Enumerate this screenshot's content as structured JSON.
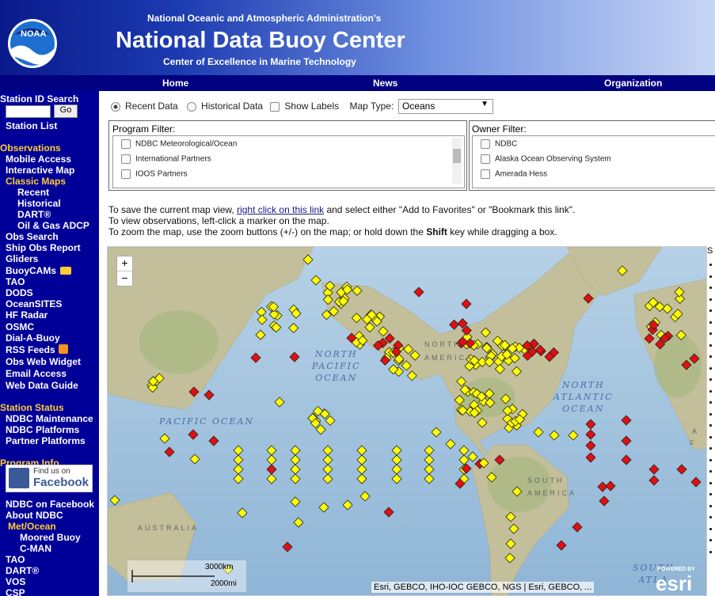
{
  "header": {
    "logo": "NOAA",
    "org": "National Oceanic and Atmospheric Administration's",
    "title": "National Data Buoy Center",
    "subtitle": "Center of Excellence in Marine Technology"
  },
  "nav": [
    "Home",
    "News",
    "Organization"
  ],
  "sidebar": {
    "search": {
      "label": "Station ID Search",
      "button": "Go",
      "link": "Station List"
    },
    "observations": {
      "heading": "Observations",
      "links": [
        "Mobile Access",
        "Interactive Map"
      ],
      "classic": "Classic Maps",
      "classic_links": [
        "Recent",
        "Historical",
        "DART®",
        "Oil & Gas ADCP"
      ],
      "more_links": [
        "Obs Search",
        "Ship Obs Report",
        "Gliders",
        "BuoyCAMs",
        "TAO",
        "DODS",
        "OceanSITES",
        "HF Radar",
        "OSMC",
        "Dial-A-Buoy",
        "RSS Feeds",
        "Obs Web Widget",
        "Email Access",
        "Web Data Guide"
      ]
    },
    "status": {
      "heading": "Station Status",
      "links": [
        "NDBC Maintenance",
        "NDBC Platforms",
        "Partner Platforms"
      ]
    },
    "program": {
      "heading": "Program Info",
      "facebook": [
        "Find us on",
        "Facebook"
      ],
      "links": [
        "NDBC on Facebook",
        "About NDBC"
      ],
      "metocean": "Met/Ocean",
      "metocean_links": [
        "Moored Buoy",
        "C-MAN"
      ],
      "more_links": [
        "TAO",
        "DART®",
        "VOS",
        "CSP"
      ]
    }
  },
  "controls": {
    "recent": "Recent Data",
    "historical": "Historical Data",
    "labels": "Show Labels",
    "map_type_label": "Map Type:",
    "map_type": "Oceans"
  },
  "filters": {
    "program": {
      "label": "Program Filter:",
      "options": [
        "NDBC Meteorological/Ocean",
        "International Partners",
        "IOOS Partners"
      ]
    },
    "owner": {
      "label": "Owner Filter:",
      "options": [
        "NDBC",
        "Alaska Ocean Observing System",
        "Amerada Hess"
      ]
    }
  },
  "instructions": {
    "line1": [
      "To save the current map view, ",
      "right click on this link",
      " and select either \"Add to Favorites\" or \"Bookmark this link\"."
    ],
    "line2": "To view observations, left-click a marker on the map.",
    "line3": [
      "To zoom the map, use the zoom buttons (+/-) on the map; or hold down the ",
      "Shift",
      " key while dragging a box."
    ]
  },
  "map": {
    "zoom_in": "+",
    "zoom_out": "−",
    "ocean_labels": [
      [
        "NORTH",
        "PACIFIC",
        "OCEAN"
      ],
      [
        "PACIFIC OCEAN"
      ],
      [
        "NORTH",
        "ATLANTIC",
        "OCEAN"
      ],
      [
        "SOUTH",
        "ATLA"
      ]
    ],
    "land_labels": [
      "NORTH",
      "AMERICA",
      "SOUTH",
      "AMERICA",
      "AUSTRALIA",
      "A",
      "F"
    ],
    "scale": [
      "3000km",
      "2000mi"
    ],
    "attribution": "Esri, GEBCO, IHO-IOC GEBCO, NGS | Esri, GEBCO, ...",
    "powered": "POWERED BY",
    "brand": "esri",
    "side": "S"
  }
}
